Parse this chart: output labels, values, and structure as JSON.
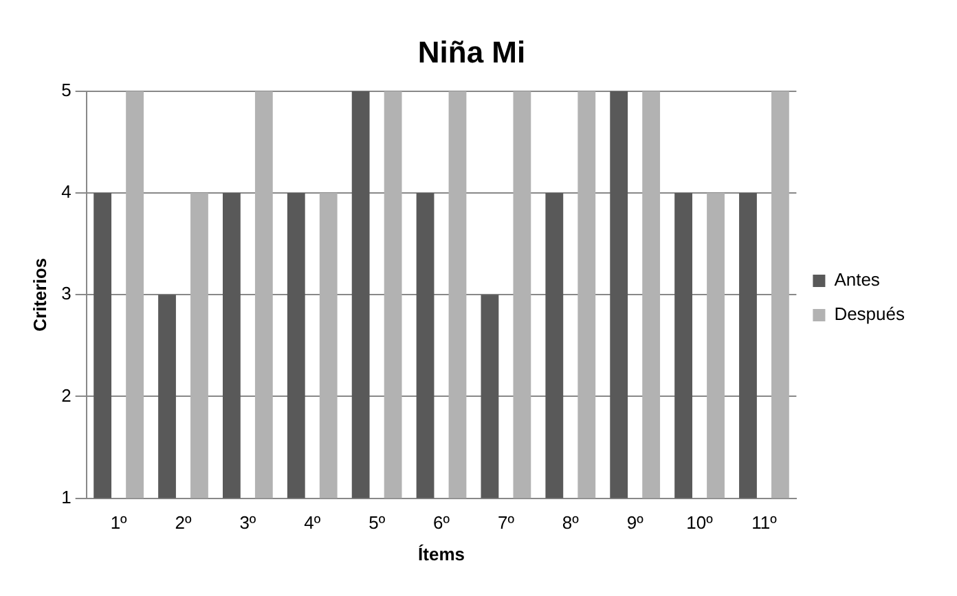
{
  "chart_data": {
    "type": "bar",
    "title": "Niña Mi",
    "xlabel": "Ítems",
    "ylabel": "Criterios",
    "categories": [
      "1º",
      "2º",
      "3º",
      "4º",
      "5º",
      "6º",
      "7º",
      "8º",
      "9º",
      "10º",
      "11º"
    ],
    "series": [
      {
        "name": "Antes",
        "color": "#595959",
        "values": [
          4,
          3,
          4,
          4,
          5,
          4,
          3,
          4,
          5,
          4,
          4
        ]
      },
      {
        "name": "Después",
        "color": "#b2b2b2",
        "values": [
          5,
          4,
          5,
          4,
          5,
          5,
          5,
          5,
          5,
          4,
          5
        ]
      }
    ],
    "ylim": [
      1,
      5
    ],
    "yticks": [
      1,
      2,
      3,
      4,
      5
    ],
    "grid": "y",
    "legend": "right"
  }
}
